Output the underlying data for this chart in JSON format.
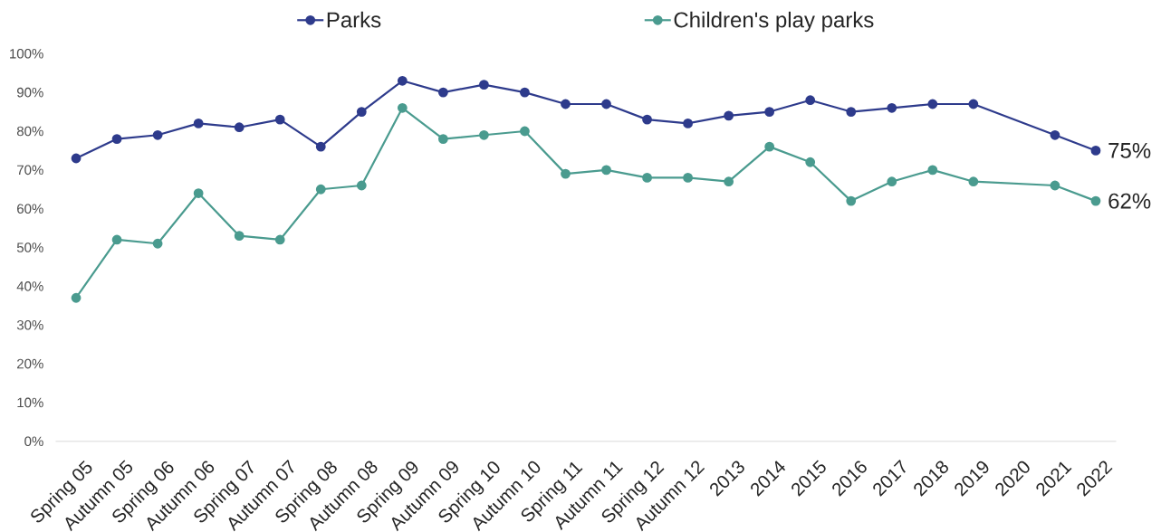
{
  "chart_data": {
    "type": "line",
    "categories": [
      "Spring 05",
      "Autumn 05",
      "Spring 06",
      "Autumn 06",
      "Spring 07",
      "Autumn 07",
      "Spring 08",
      "Autumn 08",
      "Spring 09",
      "Autumn 09",
      "Spring 10",
      "Autumn 10",
      "Spring 11",
      "Autumn 11",
      "Spring 12",
      "Autumn 12",
      "2013",
      "2014",
      "2015",
      "2016",
      "2017",
      "2018",
      "2019",
      "2020",
      "2021",
      "2022"
    ],
    "series": [
      {
        "name": "Parks",
        "color": "#2e3b8c",
        "values": [
          73,
          78,
          79,
          82,
          81,
          83,
          76,
          85,
          93,
          90,
          92,
          90,
          87,
          87,
          83,
          82,
          84,
          85,
          88,
          85,
          86,
          87,
          87,
          null,
          79,
          75
        ],
        "value_labels": [
          null,
          null,
          null,
          null,
          null,
          null,
          null,
          null,
          null,
          null,
          null,
          null,
          null,
          null,
          null,
          null,
          null,
          null,
          null,
          null,
          null,
          null,
          null,
          null,
          null,
          "75%"
        ]
      },
      {
        "name": "Children's play parks",
        "color": "#4a9b8f",
        "values": [
          37,
          52,
          51,
          64,
          53,
          52,
          65,
          66,
          86,
          78,
          79,
          80,
          69,
          70,
          68,
          68,
          67,
          76,
          72,
          62,
          67,
          70,
          67,
          null,
          66,
          62
        ],
        "value_labels": [
          null,
          null,
          null,
          null,
          null,
          null,
          null,
          null,
          null,
          null,
          null,
          null,
          null,
          null,
          null,
          null,
          null,
          null,
          null,
          null,
          null,
          null,
          null,
          null,
          null,
          "62%"
        ]
      }
    ],
    "ylim": [
      0,
      100
    ],
    "yticks": [
      {
        "value": 0,
        "label": "0%"
      },
      {
        "value": 10,
        "label": "10%"
      },
      {
        "value": 20,
        "label": "20%"
      },
      {
        "value": 30,
        "label": "30%"
      },
      {
        "value": 40,
        "label": "40%"
      },
      {
        "value": 50,
        "label": "50%"
      },
      {
        "value": 60,
        "label": "60%"
      },
      {
        "value": 70,
        "label": "70%"
      },
      {
        "value": 80,
        "label": "80%"
      },
      {
        "value": 90,
        "label": "90%"
      },
      {
        "value": 100,
        "label": "100%"
      }
    ],
    "legend": "top",
    "marker": "circle",
    "line_style": "solid"
  }
}
